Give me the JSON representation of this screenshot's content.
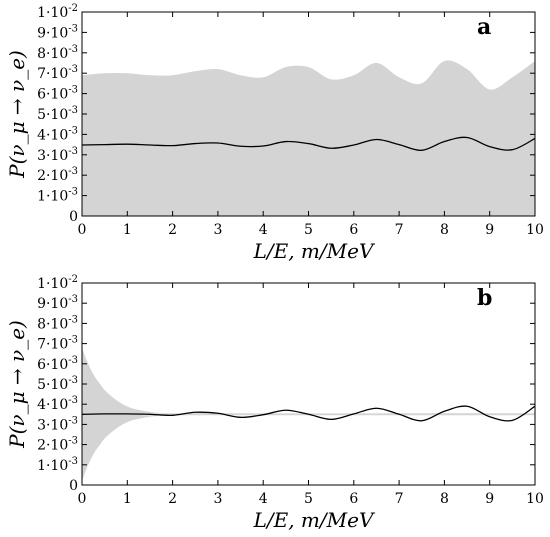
{
  "chart_data": [
    {
      "type": "area",
      "panel_label": "a",
      "xlabel": "L/E, m/MeV",
      "ylabel": "P(ν_μ → ν_e)",
      "xlim": [
        0,
        10
      ],
      "ylim": [
        0,
        0.01
      ],
      "x_ticks": [
        0,
        1,
        2,
        3,
        4,
        5,
        6,
        7,
        8,
        9,
        10
      ],
      "y_ticks": [
        0,
        0.001,
        0.002,
        0.003,
        0.004,
        0.005,
        0.006,
        0.007,
        0.008,
        0.009,
        0.01
      ],
      "y_tick_labels": [
        {
          "mantissa": "0",
          "exp": ""
        },
        {
          "mantissa": "1·10",
          "exp": "-3"
        },
        {
          "mantissa": "2·10",
          "exp": "-3"
        },
        {
          "mantissa": "3·10",
          "exp": "-3"
        },
        {
          "mantissa": "4·10",
          "exp": "-3"
        },
        {
          "mantissa": "5·10",
          "exp": "-3"
        },
        {
          "mantissa": "6·10",
          "exp": "-3"
        },
        {
          "mantissa": "7·10",
          "exp": "-3"
        },
        {
          "mantissa": "8·10",
          "exp": "-3"
        },
        {
          "mantissa": "9·10",
          "exp": "-3"
        },
        {
          "mantissa": "1·10",
          "exp": "-2"
        }
      ],
      "band": {
        "x": [
          0,
          0.5,
          1,
          1.5,
          2,
          2.5,
          3,
          3.5,
          4,
          4.5,
          5,
          5.5,
          6,
          6.5,
          7,
          7.5,
          8,
          8.5,
          9,
          9.5,
          10
        ],
        "lower": [
          0,
          0,
          0,
          0,
          0,
          0,
          0,
          0,
          0,
          0,
          0,
          0,
          0,
          0,
          0,
          0,
          0,
          0,
          0,
          0,
          0
        ],
        "upper": [
          0.0069,
          0.007,
          0.007,
          0.0069,
          0.0069,
          0.0071,
          0.0072,
          0.0069,
          0.0068,
          0.0073,
          0.0073,
          0.0067,
          0.0069,
          0.0075,
          0.0068,
          0.0065,
          0.0076,
          0.0072,
          0.0062,
          0.0068,
          0.0076
        ]
      },
      "series": [
        {
          "x": [
            0,
            0.5,
            1,
            1.5,
            2,
            2.5,
            3,
            3.5,
            4,
            4.5,
            5,
            5.5,
            6,
            6.5,
            7,
            7.5,
            8,
            8.5,
            9,
            9.5,
            10
          ],
          "values": [
            0.00348,
            0.0035,
            0.00352,
            0.00348,
            0.00345,
            0.00355,
            0.00358,
            0.00342,
            0.00343,
            0.00365,
            0.00355,
            0.00332,
            0.00348,
            0.00375,
            0.0035,
            0.00322,
            0.00365,
            0.00385,
            0.0034,
            0.00325,
            0.0038
          ]
        }
      ]
    },
    {
      "type": "area",
      "panel_label": "b",
      "xlabel": "L/E, m/MeV",
      "ylabel": "P(ν_μ → ν_e)",
      "xlim": [
        0,
        10
      ],
      "ylim": [
        0,
        0.01
      ],
      "x_ticks": [
        0,
        1,
        2,
        3,
        4,
        5,
        6,
        7,
        8,
        9,
        10
      ],
      "y_ticks": [
        0,
        0.001,
        0.002,
        0.003,
        0.004,
        0.005,
        0.006,
        0.007,
        0.008,
        0.009,
        0.01
      ],
      "y_tick_labels": [
        {
          "mantissa": "0",
          "exp": ""
        },
        {
          "mantissa": "1·10",
          "exp": "-3"
        },
        {
          "mantissa": "2·10",
          "exp": "-3"
        },
        {
          "mantissa": "3·10",
          "exp": "-3"
        },
        {
          "mantissa": "4·10",
          "exp": "-3"
        },
        {
          "mantissa": "5·10",
          "exp": "-3"
        },
        {
          "mantissa": "6·10",
          "exp": "-3"
        },
        {
          "mantissa": "7·10",
          "exp": "-3"
        },
        {
          "mantissa": "8·10",
          "exp": "-3"
        },
        {
          "mantissa": "9·10",
          "exp": "-3"
        },
        {
          "mantissa": "1·10",
          "exp": "-2"
        }
      ],
      "band": {
        "x": [
          0,
          0.1,
          0.2,
          0.3,
          0.4,
          0.5,
          0.7,
          0.9,
          1.1,
          1.3,
          1.5,
          1.7,
          2,
          10
        ],
        "lower": [
          0.0002,
          0.0008,
          0.0013,
          0.0017,
          0.002,
          0.0023,
          0.0027,
          0.003,
          0.0032,
          0.0033,
          0.00338,
          0.00342,
          0.00345,
          0.00345
        ],
        "upper": [
          0.0068,
          0.0062,
          0.0057,
          0.0053,
          0.005,
          0.0047,
          0.0043,
          0.004,
          0.0038,
          0.0037,
          0.00362,
          0.00358,
          0.00355,
          0.00355
        ]
      },
      "series": [
        {
          "x": [
            0,
            0.5,
            1,
            1.5,
            2,
            2.5,
            3,
            3.5,
            4,
            4.5,
            5,
            5.5,
            6,
            6.5,
            7,
            7.5,
            8,
            8.5,
            9,
            9.5,
            10
          ],
          "values": [
            0.0035,
            0.00352,
            0.00352,
            0.0035,
            0.00345,
            0.0036,
            0.00355,
            0.00335,
            0.00348,
            0.0037,
            0.0035,
            0.00325,
            0.00352,
            0.0038,
            0.0035,
            0.00318,
            0.00365,
            0.0039,
            0.00338,
            0.0032,
            0.0039
          ]
        }
      ]
    }
  ]
}
